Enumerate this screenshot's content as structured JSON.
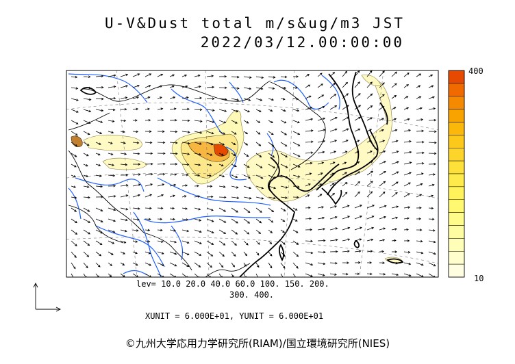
{
  "title": {
    "line1": "U-V&Dust total m/s&ug/m3 JST",
    "line2": "2022/03/12.00:00:00"
  },
  "contour_levels": {
    "line1": "lev= 10.0 20.0 40.0 60.0 100. 150. 200.",
    "line2": "300. 400."
  },
  "units": "XUNIT = 6.000E+01, YUNIT = 6.000E+01",
  "colorbar": {
    "max_label": "400",
    "min_label": "10",
    "colors": [
      "#e64a00",
      "#f06a00",
      "#f58a00",
      "#f9a300",
      "#fbb80a",
      "#fcc81a",
      "#fdd52a",
      "#fee03a",
      "#feea4a",
      "#fff25a",
      "#fff870",
      "#fffc8a",
      "#fffda2",
      "#fffeb8",
      "#fffecc",
      "#fffee0"
    ]
  },
  "copyright": "©九州大学応用力学研究所(RIAM)/国立環境研究所(NIES)"
}
